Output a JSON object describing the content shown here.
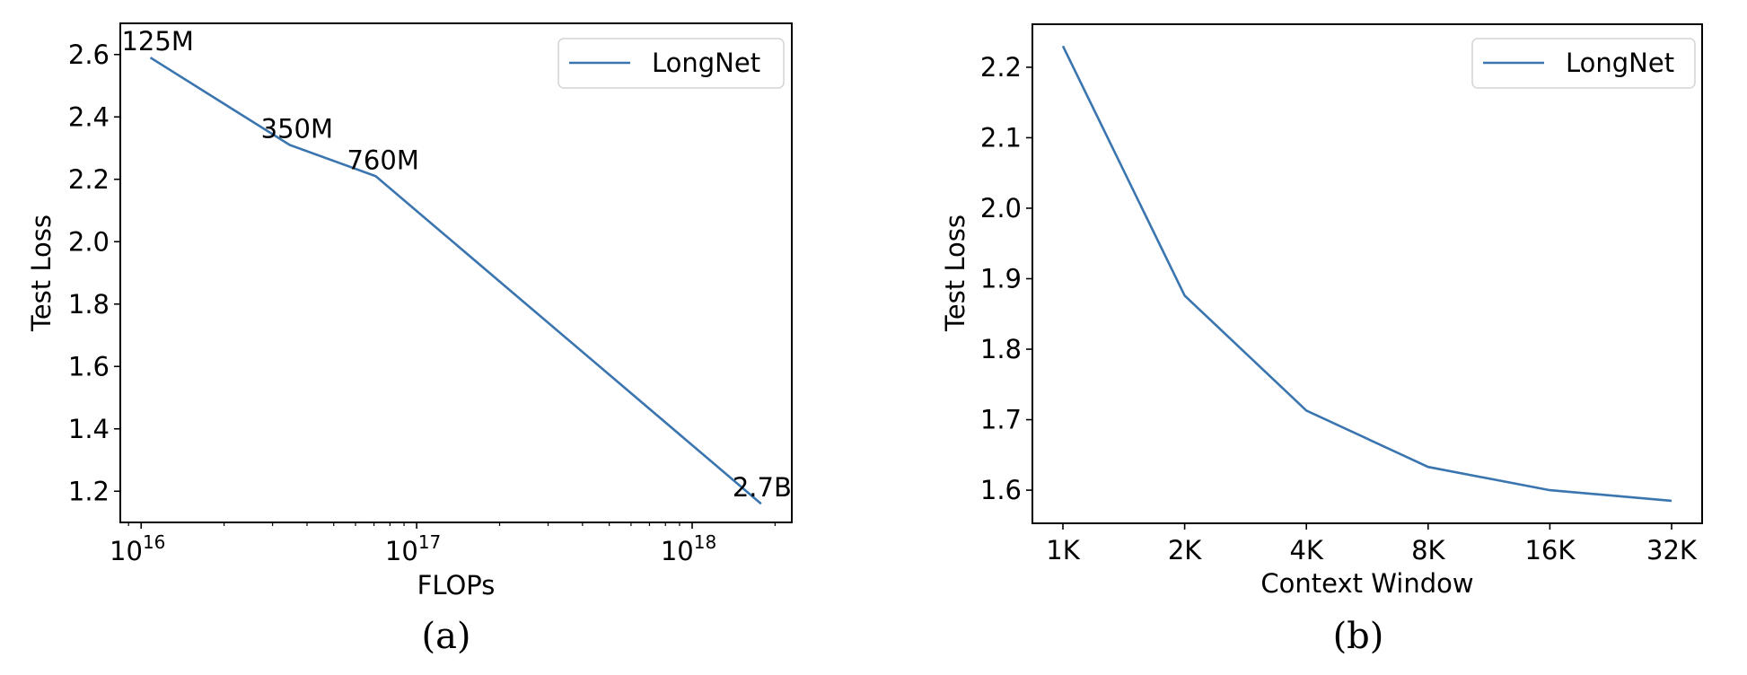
{
  "colors": {
    "series": "#3a75af",
    "axis": "#000000",
    "legend_border": "#d4d4d4"
  },
  "chart_data": [
    {
      "id": "a",
      "type": "line",
      "caption": "(a)",
      "title": "",
      "xlabel": "FLOPs",
      "ylabel": "Test Loss",
      "xscale": "log",
      "xlim": [
        8400000000000000.0,
        2.3e+18
      ],
      "ylim": [
        1.1,
        2.7
      ],
      "grid": false,
      "legend": {
        "position": "upper right",
        "entries": [
          "LongNet"
        ]
      },
      "x_ticks": [
        {
          "value": 1e+16,
          "label_base": "10",
          "label_exp": "16"
        },
        {
          "value": 1e+17,
          "label_base": "10",
          "label_exp": "17"
        },
        {
          "value": 1e+18,
          "label_base": "10",
          "label_exp": "18"
        }
      ],
      "y_ticks": [
        "1.2",
        "1.4",
        "1.6",
        "1.8",
        "2.0",
        "2.2",
        "2.4",
        "2.6"
      ],
      "series": [
        {
          "name": "LongNet",
          "x": [
            1.08e+16,
            3.46e+16,
            7.1e+16,
            1.78e+18
          ],
          "values": [
            2.59,
            2.31,
            2.21,
            1.16
          ],
          "annotations": [
            "125M",
            "350M",
            "760M",
            "2.7B"
          ]
        }
      ]
    },
    {
      "id": "b",
      "type": "line",
      "caption": "(b)",
      "title": "",
      "xlabel": "Context Window",
      "ylabel": "Test Loss",
      "xscale": "log2",
      "categories": [
        "1K",
        "2K",
        "4K",
        "8K",
        "16K",
        "32K"
      ],
      "ylim": [
        1.553,
        2.261
      ],
      "grid": false,
      "legend": {
        "position": "upper right",
        "entries": [
          "LongNet"
        ]
      },
      "y_ticks": [
        "1.6",
        "1.7",
        "1.8",
        "1.9",
        "2.0",
        "2.1",
        "2.2"
      ],
      "series": [
        {
          "name": "LongNet",
          "values": [
            2.23,
            1.876,
            1.713,
            1.633,
            1.6,
            1.585
          ]
        }
      ]
    }
  ]
}
